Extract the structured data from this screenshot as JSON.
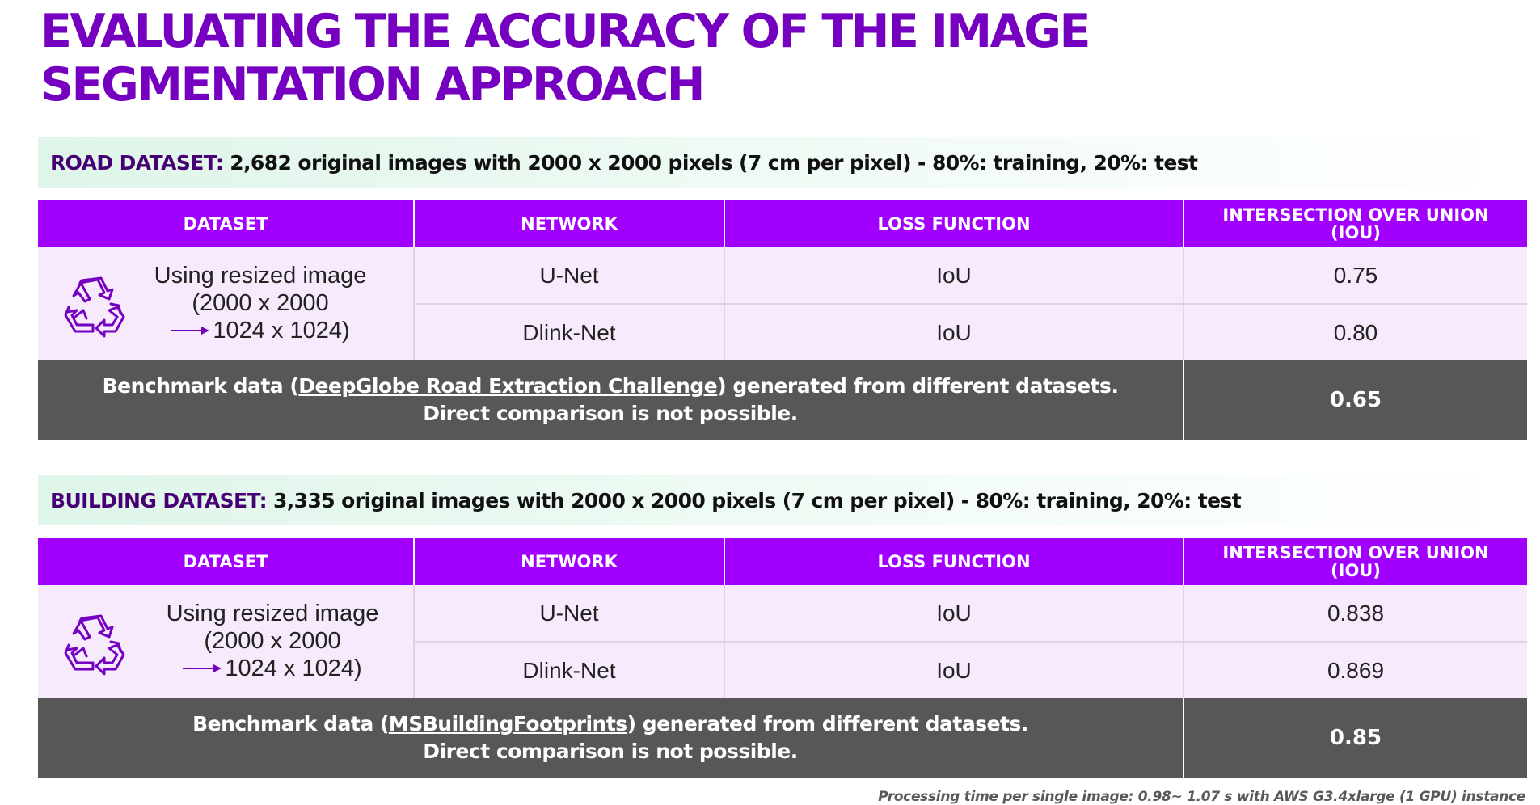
{
  "title": {
    "line1": "EVALUATING THE ACCURACY OF THE IMAGE",
    "line2": "SEGMENTATION APPROACH"
  },
  "headers": {
    "dataset": "DATASET",
    "network": "NETWORK",
    "loss_function": "LOSS FUNCTION",
    "iou_line1": "INTERSECTION OVER UNION",
    "iou_line2": "(IOU)"
  },
  "road": {
    "banner_label": "ROAD DATASET:",
    "banner_text": "2,682 original images with 2000 x 2000 pixels (7 cm per pixel) - 80%: training, 20%: test",
    "dataset_line1": "Using resized image",
    "dataset_line2": "(2000 x 2000",
    "dataset_line3": "1024 x 1024)",
    "rows": [
      {
        "network": "U-Net",
        "loss": "IoU",
        "iou": "0.75"
      },
      {
        "network": "Dlink-Net",
        "loss": "IoU",
        "iou": "0.80"
      }
    ],
    "bench_pre": "Benchmark data (",
    "bench_link": "DeepGlobe Road Extraction Challenge",
    "bench_post": ") generated from different datasets.",
    "bench_line2": "Direct comparison is not possible.",
    "bench_value": "0.65"
  },
  "building": {
    "banner_label": "BUILDING DATASET:",
    "banner_text": "3,335 original images with 2000 x 2000 pixels (7 cm per pixel) - 80%: training, 20%: test",
    "dataset_line1": "Using resized image",
    "dataset_line2": "(2000 x 2000",
    "dataset_line3": "1024 x 1024)",
    "rows": [
      {
        "network": "U-Net",
        "loss": "IoU",
        "iou": "0.838"
      },
      {
        "network": "Dlink-Net",
        "loss": "IoU",
        "iou": "0.869"
      }
    ],
    "bench_pre": "Benchmark data (",
    "bench_link": "MSBuildingFootprints",
    "bench_post": ") generated from different datasets.",
    "bench_line2": "Direct comparison is not possible.",
    "bench_value": "0.85"
  },
  "footnote": "Processing time per single image: 0.98~ 1.07 s with AWS G3.4xlarge (1 GPU) instance",
  "colors": {
    "title_purple": "#7500c0",
    "header_purple": "#a100ff",
    "row_lavender": "#f7eafc",
    "bench_gray": "#575757",
    "banner_green": "#dff5ea"
  }
}
